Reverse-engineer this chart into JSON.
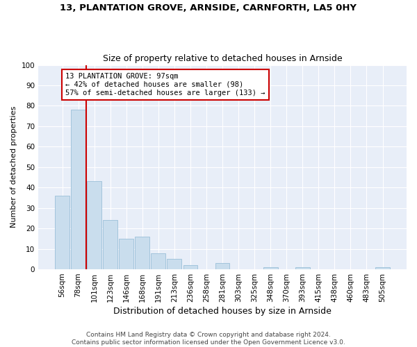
{
  "title1": "13, PLANTATION GROVE, ARNSIDE, CARNFORTH, LA5 0HY",
  "title2": "Size of property relative to detached houses in Arnside",
  "xlabel": "Distribution of detached houses by size in Arnside",
  "ylabel": "Number of detached properties",
  "categories": [
    "56sqm",
    "78sqm",
    "101sqm",
    "123sqm",
    "146sqm",
    "168sqm",
    "191sqm",
    "213sqm",
    "236sqm",
    "258sqm",
    "281sqm",
    "303sqm",
    "325sqm",
    "348sqm",
    "370sqm",
    "393sqm",
    "415sqm",
    "438sqm",
    "460sqm",
    "483sqm",
    "505sqm"
  ],
  "values": [
    36,
    78,
    43,
    24,
    15,
    16,
    8,
    5,
    2,
    0,
    3,
    0,
    0,
    1,
    0,
    1,
    0,
    0,
    0,
    0,
    1
  ],
  "bar_color": "#c9dded",
  "bar_edge_color": "#9bbfd8",
  "vline_color": "#cc0000",
  "annotation_text": "13 PLANTATION GROVE: 97sqm\n← 42% of detached houses are smaller (98)\n57% of semi-detached houses are larger (133) →",
  "annotation_box_color": "#ffffff",
  "annotation_box_edge_color": "#cc0000",
  "ylim": [
    0,
    100
  ],
  "yticks": [
    0,
    10,
    20,
    30,
    40,
    50,
    60,
    70,
    80,
    90,
    100
  ],
  "footnote": "Contains HM Land Registry data © Crown copyright and database right 2024.\nContains public sector information licensed under the Open Government Licence v3.0.",
  "background_color": "#e8eef8",
  "grid_color": "#ffffff",
  "title1_fontsize": 9.5,
  "title2_fontsize": 9,
  "xlabel_fontsize": 9,
  "ylabel_fontsize": 8,
  "tick_fontsize": 7.5,
  "footnote_fontsize": 6.5,
  "annotation_fontsize": 7.5
}
